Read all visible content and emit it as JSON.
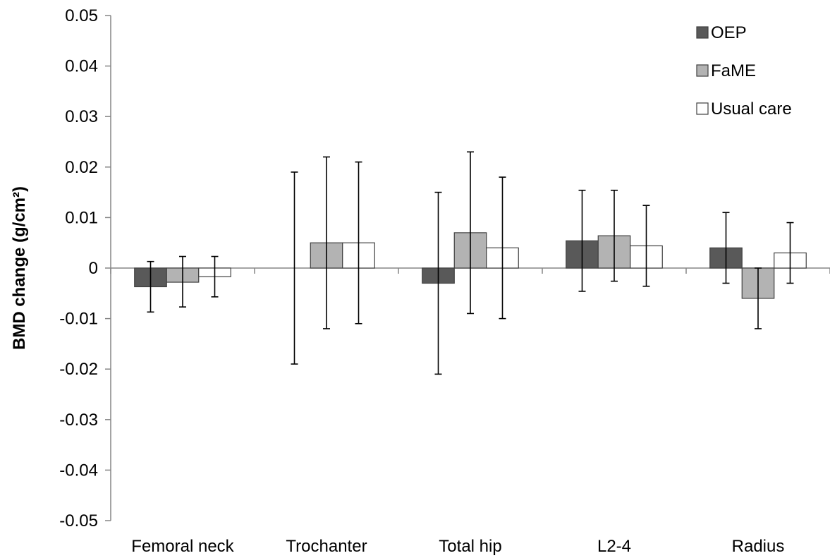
{
  "chart_data": {
    "type": "bar",
    "title": "",
    "xlabel": "",
    "ylabel": "BMD change (g/cm²)",
    "ylim": [
      -0.05,
      0.05
    ],
    "yticks": [
      "0.05",
      "0.04",
      "0.03",
      "0.02",
      "0.01",
      "0",
      "-0.01",
      "-0.02",
      "-0.03",
      "-0.04",
      "-0.05"
    ],
    "grid": false,
    "legend_position": "top-right",
    "categories": [
      "Femoral neck",
      "Trochanter",
      "Total hip",
      "L2-4",
      "Radius"
    ],
    "series": [
      {
        "name": "OEP",
        "color": "#595959",
        "values": [
          -0.0037,
          0.0,
          -0.003,
          0.0054,
          0.004
        ],
        "err_low": [
          -0.0087,
          -0.019,
          -0.021,
          -0.0046,
          -0.003
        ],
        "err_high": [
          0.0013,
          0.019,
          0.015,
          0.0154,
          0.011
        ]
      },
      {
        "name": "FaME",
        "color": "#b3b3b3",
        "values": [
          -0.0028,
          0.005,
          0.007,
          0.0064,
          -0.006
        ],
        "err_low": [
          -0.0077,
          -0.012,
          -0.009,
          -0.0026,
          -0.012
        ],
        "err_high": [
          0.0023,
          0.022,
          0.023,
          0.0154,
          0.0
        ]
      },
      {
        "name": "Usual care",
        "color": "#ffffff",
        "values": [
          -0.0017,
          0.005,
          0.004,
          0.0044,
          0.003
        ],
        "err_low": [
          -0.0057,
          -0.011,
          -0.01,
          -0.0036,
          -0.003
        ],
        "err_high": [
          0.0023,
          0.021,
          0.018,
          0.0124,
          0.009
        ]
      }
    ]
  }
}
